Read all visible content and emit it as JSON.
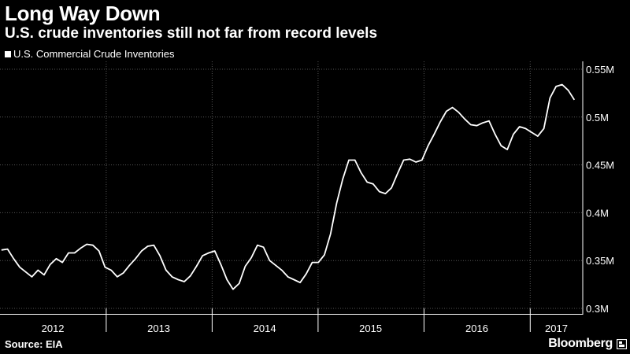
{
  "title": "Long Way Down",
  "subtitle": "U.S. crude inventories still not far from record levels",
  "source": "Source: EIA",
  "brand": "Bloomberg",
  "colors": {
    "background": "#000000",
    "line": "#ffffff",
    "grid": "#555555"
  },
  "chart_data": {
    "type": "line",
    "title": "Long Way Down",
    "subtitle": "U.S. crude inventories still not far from record levels",
    "xlabel": "",
    "ylabel": "",
    "xlim": [
      "2012-01-01",
      "2017-07-01"
    ],
    "ylim": [
      300000,
      550000
    ],
    "y_ticks": [
      300000,
      350000,
      400000,
      450000,
      500000,
      550000
    ],
    "y_tick_labels": [
      "0.3M",
      "0.35M",
      "0.4M",
      "0.45M",
      "0.5M",
      "0.55M"
    ],
    "x_tick_labels": [
      "2012",
      "2013",
      "2014",
      "2015",
      "2016",
      "2017"
    ],
    "x_tick_positions": [
      "2012-07-01",
      "2013-07-01",
      "2014-07-01",
      "2015-07-01",
      "2016-07-01",
      "2017-04-01"
    ],
    "year_boundaries": [
      "2013-01-01",
      "2014-01-01",
      "2015-01-01",
      "2016-01-01",
      "2017-01-01"
    ],
    "grid": true,
    "y_axis_side": "right",
    "legend_position": "top-left",
    "series": [
      {
        "name": "U.S. Commercial Crude Inventories",
        "x": [
          "2012-01-06",
          "2012-01-27",
          "2012-02-17",
          "2012-03-09",
          "2012-03-30",
          "2012-04-20",
          "2012-05-11",
          "2012-06-01",
          "2012-06-22",
          "2012-07-13",
          "2012-08-03",
          "2012-08-24",
          "2012-09-14",
          "2012-10-05",
          "2012-10-26",
          "2012-11-16",
          "2012-12-07",
          "2012-12-28",
          "2013-01-18",
          "2013-02-08",
          "2013-03-01",
          "2013-03-22",
          "2013-04-12",
          "2013-05-03",
          "2013-05-24",
          "2013-06-14",
          "2013-07-05",
          "2013-07-26",
          "2013-08-16",
          "2013-09-06",
          "2013-09-27",
          "2013-10-18",
          "2013-11-08",
          "2013-11-29",
          "2013-12-20",
          "2014-01-10",
          "2014-01-31",
          "2014-02-21",
          "2014-03-14",
          "2014-04-04",
          "2014-04-25",
          "2014-05-16",
          "2014-06-06",
          "2014-06-27",
          "2014-07-18",
          "2014-08-08",
          "2014-08-29",
          "2014-09-19",
          "2014-10-10",
          "2014-10-31",
          "2014-11-21",
          "2014-12-12",
          "2015-01-02",
          "2015-01-23",
          "2015-02-13",
          "2015-03-06",
          "2015-03-27",
          "2015-04-17",
          "2015-05-08",
          "2015-05-29",
          "2015-06-19",
          "2015-07-10",
          "2015-07-31",
          "2015-08-21",
          "2015-09-11",
          "2015-10-02",
          "2015-10-23",
          "2015-11-13",
          "2015-12-04",
          "2015-12-25",
          "2016-01-15",
          "2016-02-05",
          "2016-02-26",
          "2016-03-18",
          "2016-04-08",
          "2016-04-29",
          "2016-05-20",
          "2016-06-10",
          "2016-07-01",
          "2016-07-22",
          "2016-08-12",
          "2016-09-02",
          "2016-09-23",
          "2016-10-14",
          "2016-11-04",
          "2016-11-25",
          "2016-12-16",
          "2017-01-06",
          "2017-01-27",
          "2017-02-17",
          "2017-03-10",
          "2017-03-31",
          "2017-04-21",
          "2017-05-12",
          "2017-06-02"
        ],
        "values": [
          361000,
          362000,
          352000,
          343000,
          338000,
          333000,
          340000,
          335000,
          346000,
          352000,
          348000,
          358000,
          358000,
          363000,
          367000,
          366000,
          360000,
          343000,
          340000,
          333000,
          337000,
          345000,
          352000,
          360000,
          365000,
          366000,
          355000,
          340000,
          333000,
          330000,
          328000,
          334000,
          344000,
          355000,
          358000,
          360000,
          346000,
          330000,
          320000,
          326000,
          344000,
          353000,
          366000,
          364000,
          350000,
          345000,
          340000,
          333000,
          330000,
          327000,
          336000,
          348000,
          348000,
          356000,
          378000,
          410000,
          435000,
          455000,
          455000,
          442000,
          432000,
          430000,
          422000,
          420000,
          426000,
          441000,
          455000,
          456000,
          453000,
          455000,
          470000,
          482000,
          495000,
          506000,
          510000,
          505000,
          498000,
          492000,
          491000,
          494000,
          496000,
          482000,
          470000,
          466000,
          482000,
          490000,
          488000,
          484000,
          480000,
          488000,
          520000,
          532000,
          534000,
          528000,
          518000
        ]
      }
    ]
  }
}
